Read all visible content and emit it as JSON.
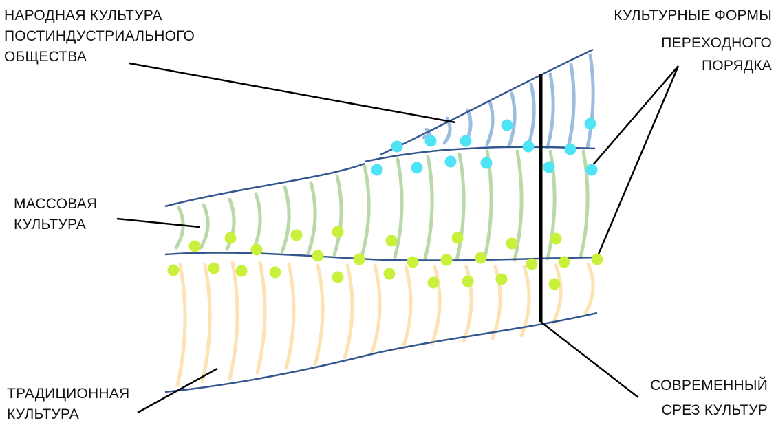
{
  "labels": {
    "folk": [
      "НАРОДНАЯ КУЛЬТУРА",
      "ПОСТИНДУСТРИАЛЬНОГО",
      "ОБЩЕСТВА"
    ],
    "transitional": [
      "КУЛЬТУРНЫЕ ФОРМЫ",
      "ПЕРЕХОДНОГО",
      "ПОРЯДКА"
    ],
    "mass": [
      "МАССОВАЯ",
      "КУЛЬТУРА"
    ],
    "traditional": [
      "ТРАДИЦИОННАЯ",
      "КУЛЬТУРА"
    ],
    "slice": [
      "СОВРЕМЕННЫЙ",
      "СРЕЗ КУЛЬТУР"
    ]
  },
  "colors": {
    "boundary": "#34568f",
    "folk_band": "#9dbde0",
    "mass_band": "#b9d9a8",
    "traditional_band": "#fde2b4",
    "transitional_top": "#4fe4f5",
    "transitional_bottom": "#c9f03b",
    "slice_line": "#000000",
    "leader": "#000000"
  }
}
